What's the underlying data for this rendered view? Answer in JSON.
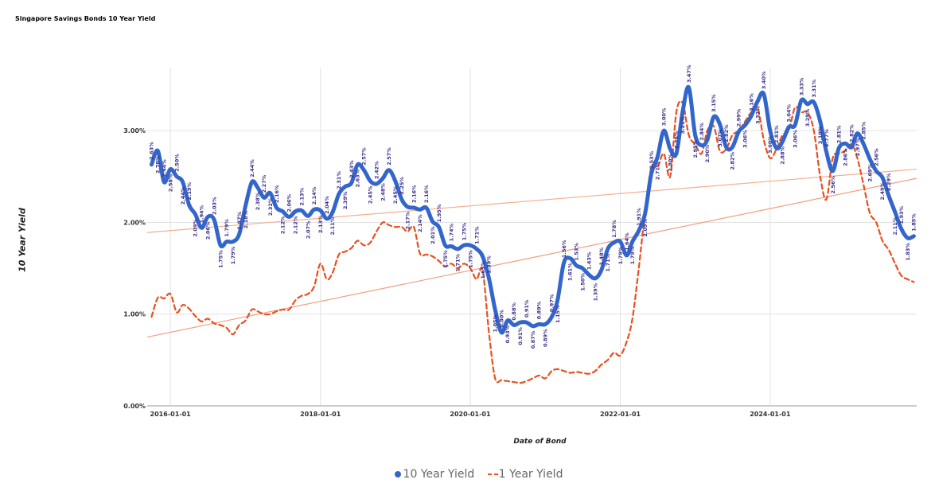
{
  "chart_data": {
    "type": "line",
    "title": "Singapore Savings Bonds 10 Year Yield",
    "xlabel": "Date of Bond",
    "ylabel": "10 Year Yield",
    "start_month": "2015-10",
    "xlim": [
      "2015-09-10",
      "2025-12-15"
    ],
    "ylim": [
      0,
      3.6
    ],
    "y_ticks": [
      "0.00%",
      "1.00%",
      "2.00%",
      "3.00%"
    ],
    "y_tick_values": [
      0,
      1,
      2,
      3
    ],
    "x_ticks": [
      "2016-01-01",
      "2018-01-01",
      "2020-01-01",
      "2022-01-01",
      "2024-01-01"
    ],
    "grid": true,
    "legend_position": "bottom",
    "series": [
      {
        "name": "10 Year Yield",
        "color": "#3366cc",
        "style": "solid",
        "data_labels": true,
        "values": [
          2.63,
          2.78,
          2.44,
          2.58,
          2.5,
          2.44,
          2.19,
          2.09,
          1.94,
          2.06,
          2.03,
          1.75,
          1.79,
          1.79,
          1.87,
          2.18,
          2.44,
          2.38,
          2.27,
          2.32,
          2.16,
          2.12,
          2.06,
          2.12,
          2.13,
          2.07,
          2.14,
          2.13,
          2.04,
          2.11,
          2.31,
          2.39,
          2.43,
          2.63,
          2.57,
          2.45,
          2.42,
          2.48,
          2.57,
          2.45,
          2.25,
          2.17,
          2.16,
          2.14,
          2.16,
          2.01,
          1.95,
          1.75,
          1.74,
          1.71,
          1.75,
          1.75,
          1.71,
          1.63,
          1.39,
          1.05,
          0.8,
          0.93,
          0.88,
          0.91,
          0.91,
          0.87,
          0.89,
          0.89,
          0.97,
          1.15,
          1.56,
          1.61,
          1.53,
          1.5,
          1.43,
          1.39,
          1.48,
          1.71,
          1.78,
          1.79,
          1.64,
          1.79,
          1.91,
          2.09,
          2.53,
          2.71,
          3.0,
          2.8,
          2.75,
          3.21,
          3.47,
          2.95,
          2.84,
          2.9,
          3.15,
          3.07,
          2.82,
          2.82,
          2.99,
          3.06,
          3.16,
          3.32,
          3.4,
          3.0,
          2.81,
          2.88,
          3.04,
          3.06,
          3.33,
          3.29,
          3.31,
          3.1,
          2.77,
          2.56,
          2.81,
          2.86,
          2.82,
          2.97,
          2.85,
          2.69,
          2.56,
          2.49,
          2.29,
          2.11,
          1.93,
          1.83,
          1.85
        ]
      },
      {
        "name": "1 Year Yield",
        "color": "#e8501e",
        "style": "dashed",
        "data_labels": false,
        "values": [
          0.97,
          1.18,
          1.17,
          1.22,
          1.02,
          1.1,
          1.06,
          0.98,
          0.92,
          0.95,
          0.9,
          0.88,
          0.85,
          0.78,
          0.88,
          0.93,
          1.05,
          1.03,
          1.0,
          1.0,
          1.03,
          1.05,
          1.05,
          1.15,
          1.2,
          1.22,
          1.3,
          1.55,
          1.38,
          1.45,
          1.65,
          1.68,
          1.72,
          1.8,
          1.75,
          1.78,
          1.9,
          2.0,
          1.97,
          1.95,
          1.95,
          1.9,
          1.95,
          1.66,
          1.65,
          1.63,
          1.58,
          1.52,
          1.55,
          1.5,
          1.55,
          1.5,
          1.38,
          1.48,
          0.8,
          0.3,
          0.28,
          0.27,
          0.26,
          0.25,
          0.27,
          0.3,
          0.33,
          0.3,
          0.38,
          0.4,
          0.38,
          0.36,
          0.37,
          0.36,
          0.35,
          0.38,
          0.45,
          0.5,
          0.58,
          0.55,
          0.7,
          0.95,
          1.5,
          2.1,
          2.6,
          2.6,
          2.75,
          2.5,
          3.2,
          3.3,
          2.95,
          2.85,
          2.75,
          3.0,
          3.05,
          2.78,
          2.8,
          2.95,
          3.0,
          3.1,
          3.2,
          3.25,
          2.9,
          2.7,
          2.8,
          2.95,
          3.0,
          3.25,
          3.2,
          3.2,
          3.0,
          2.5,
          2.25,
          2.7,
          2.75,
          2.78,
          2.85,
          2.7,
          2.4,
          2.1,
          2.0,
          1.8,
          1.7,
          1.55,
          1.42,
          1.38,
          1.35
        ]
      }
    ],
    "trendlines": [
      {
        "series": "10 Year Yield",
        "color": "#f2b08f",
        "start": [
          "2015-09-10",
          1.89
        ],
        "end": [
          "2025-12-15",
          2.58
        ]
      },
      {
        "series": "1 Year Yield",
        "color": "#f0a080",
        "start": [
          "2015-09-10",
          0.75
        ],
        "end": [
          "2025-12-15",
          2.48
        ]
      }
    ]
  }
}
